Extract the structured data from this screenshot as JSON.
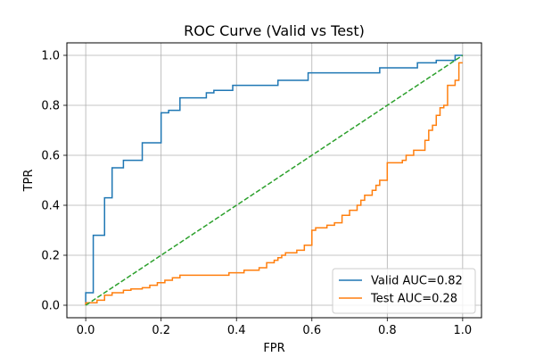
{
  "chart_data": {
    "type": "line",
    "title": "ROC Curve (Valid vs Test)",
    "xlabel": "FPR",
    "ylabel": "TPR",
    "xlim": [
      -0.05,
      1.05
    ],
    "ylim": [
      -0.05,
      1.05
    ],
    "xticks": [
      0.0,
      0.2,
      0.4,
      0.6,
      0.8,
      1.0
    ],
    "yticks": [
      0.0,
      0.2,
      0.4,
      0.6,
      0.8,
      1.0
    ],
    "xtick_labels": [
      "0.0",
      "0.2",
      "0.4",
      "0.6",
      "0.8",
      "1.0"
    ],
    "ytick_labels": [
      "0.0",
      "0.2",
      "0.4",
      "0.6",
      "0.8",
      "1.0"
    ],
    "grid": true,
    "legend_position": "lower-right",
    "series": [
      {
        "name": "Valid AUC=0.82",
        "color": "#1f77b4",
        "line_style": "solid",
        "x": [
          0.0,
          0.0,
          0.02,
          0.02,
          0.05,
          0.05,
          0.07,
          0.07,
          0.1,
          0.1,
          0.15,
          0.15,
          0.2,
          0.2,
          0.22,
          0.22,
          0.25,
          0.25,
          0.32,
          0.32,
          0.34,
          0.34,
          0.39,
          0.39,
          0.51,
          0.51,
          0.59,
          0.59,
          0.78,
          0.78,
          0.88,
          0.88,
          0.93,
          0.93,
          0.98,
          0.98,
          1.0
        ],
        "y": [
          0.0,
          0.05,
          0.05,
          0.28,
          0.28,
          0.43,
          0.43,
          0.55,
          0.55,
          0.58,
          0.58,
          0.65,
          0.65,
          0.77,
          0.77,
          0.78,
          0.78,
          0.83,
          0.83,
          0.85,
          0.85,
          0.86,
          0.86,
          0.88,
          0.88,
          0.9,
          0.9,
          0.93,
          0.93,
          0.95,
          0.95,
          0.97,
          0.97,
          0.98,
          0.98,
          1.0,
          1.0
        ]
      },
      {
        "name": "Test AUC=0.28",
        "color": "#ff7f0e",
        "line_style": "solid",
        "x": [
          0.0,
          0.0,
          0.01,
          0.01,
          0.03,
          0.03,
          0.05,
          0.05,
          0.07,
          0.07,
          0.1,
          0.1,
          0.12,
          0.12,
          0.15,
          0.15,
          0.17,
          0.17,
          0.19,
          0.19,
          0.21,
          0.21,
          0.23,
          0.23,
          0.25,
          0.25,
          0.38,
          0.38,
          0.42,
          0.42,
          0.46,
          0.46,
          0.48,
          0.48,
          0.5,
          0.5,
          0.51,
          0.51,
          0.52,
          0.52,
          0.53,
          0.53,
          0.56,
          0.56,
          0.58,
          0.58,
          0.6,
          0.6,
          0.61,
          0.61,
          0.64,
          0.64,
          0.66,
          0.66,
          0.68,
          0.68,
          0.7,
          0.7,
          0.72,
          0.72,
          0.73,
          0.73,
          0.74,
          0.74,
          0.76,
          0.76,
          0.77,
          0.77,
          0.78,
          0.78,
          0.8,
          0.8,
          0.84,
          0.84,
          0.85,
          0.85,
          0.87,
          0.87,
          0.9,
          0.9,
          0.91,
          0.91,
          0.92,
          0.92,
          0.93,
          0.93,
          0.94,
          0.94,
          0.95,
          0.95,
          0.96,
          0.96,
          0.98,
          0.98,
          0.99,
          0.99,
          1.0
        ],
        "y": [
          0.0,
          0.01,
          0.01,
          0.01,
          0.01,
          0.02,
          0.02,
          0.04,
          0.04,
          0.05,
          0.05,
          0.06,
          0.06,
          0.065,
          0.065,
          0.07,
          0.07,
          0.08,
          0.08,
          0.09,
          0.09,
          0.1,
          0.1,
          0.11,
          0.11,
          0.12,
          0.12,
          0.13,
          0.13,
          0.14,
          0.14,
          0.15,
          0.15,
          0.17,
          0.17,
          0.18,
          0.18,
          0.19,
          0.19,
          0.2,
          0.2,
          0.21,
          0.21,
          0.22,
          0.22,
          0.24,
          0.24,
          0.3,
          0.3,
          0.31,
          0.31,
          0.32,
          0.32,
          0.33,
          0.33,
          0.36,
          0.36,
          0.38,
          0.38,
          0.4,
          0.4,
          0.42,
          0.42,
          0.44,
          0.44,
          0.46,
          0.46,
          0.48,
          0.48,
          0.5,
          0.5,
          0.57,
          0.57,
          0.58,
          0.58,
          0.6,
          0.6,
          0.62,
          0.62,
          0.66,
          0.66,
          0.7,
          0.7,
          0.72,
          0.72,
          0.76,
          0.76,
          0.79,
          0.79,
          0.8,
          0.8,
          0.88,
          0.88,
          0.9,
          0.9,
          0.97,
          0.97
        ]
      },
      {
        "name": "",
        "color": "#2ca02c",
        "line_style": "dashed",
        "x": [
          0.0,
          1.0
        ],
        "y": [
          0.0,
          1.0
        ]
      }
    ]
  }
}
